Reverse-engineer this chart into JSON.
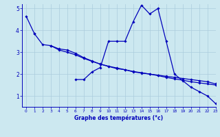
{
  "xlabel": "Graphe des températures (°c)",
  "background_color": "#cce8f0",
  "grid_color": "#aaccdd",
  "line_color": "#0000bb",
  "xlim": [
    -0.5,
    23
  ],
  "ylim": [
    0.5,
    5.2
  ],
  "yticks": [
    1,
    2,
    3,
    4,
    5
  ],
  "xticks": [
    0,
    1,
    2,
    3,
    4,
    5,
    6,
    7,
    8,
    9,
    10,
    11,
    12,
    13,
    14,
    15,
    16,
    17,
    18,
    19,
    20,
    21,
    22,
    23
  ],
  "series": [
    [
      4.65,
      3.85,
      null,
      null,
      null,
      null,
      null,
      null,
      null,
      null,
      3.5,
      3.5,
      3.5,
      4.4,
      5.15,
      4.75,
      5.0,
      null,
      null,
      null,
      null,
      null,
      null,
      null
    ],
    [
      null,
      null,
      null,
      null,
      null,
      null,
      1.75,
      1.75,
      2.1,
      2.3,
      null,
      null,
      null,
      null,
      null,
      null,
      null,
      3.5,
      2.0,
      1.7,
      1.4,
      1.2,
      1.0,
      0.65
    ],
    [
      null,
      3.85,
      3.35,
      3.3,
      3.15,
      3.1,
      2.95,
      2.75,
      2.6,
      2.45,
      2.35,
      2.25,
      2.2,
      2.1,
      2.05,
      2.0,
      1.95,
      1.9,
      1.85,
      1.8,
      1.75,
      1.7,
      1.65,
      1.55
    ],
    [
      null,
      null,
      null,
      3.3,
      3.1,
      3.0,
      2.88,
      2.72,
      2.58,
      2.46,
      2.36,
      2.28,
      2.2,
      2.12,
      2.06,
      2.0,
      1.93,
      1.85,
      1.78,
      1.72,
      1.65,
      1.6,
      1.55,
      1.5
    ]
  ],
  "series_full": [
    [
      4.65,
      3.85,
      null,
      null,
      null,
      null,
      1.75,
      1.75,
      2.1,
      2.3,
      3.5,
      3.5,
      3.5,
      4.4,
      5.15,
      4.75,
      5.0,
      3.5,
      2.0,
      1.7,
      1.4,
      1.2,
      1.0,
      0.65
    ]
  ]
}
